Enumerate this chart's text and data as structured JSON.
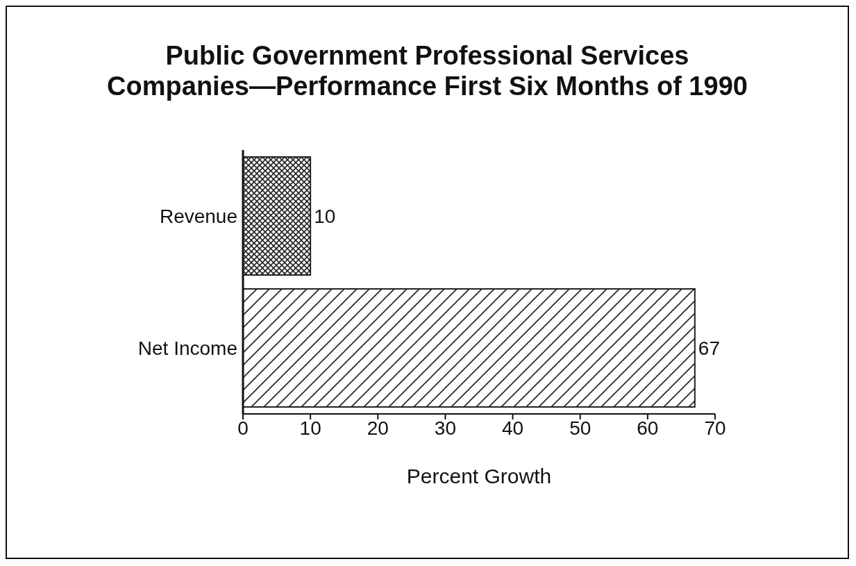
{
  "chart_data": {
    "type": "bar",
    "orientation": "horizontal",
    "title": "Public Government Professional Services\nCompanies—Performance First Six Months of 1990",
    "xlabel": "Percent Growth",
    "categories": [
      "Revenue",
      "Net Income"
    ],
    "values": [
      10,
      67
    ],
    "colors": [
      "#222222",
      "#222222"
    ],
    "xlim": [
      0,
      70
    ],
    "xticks": [
      0,
      10,
      20,
      30,
      40,
      50,
      60,
      70
    ],
    "data_labels": true,
    "grid": false
  }
}
